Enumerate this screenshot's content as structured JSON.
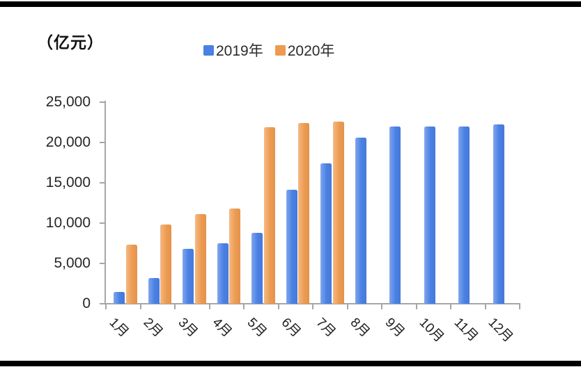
{
  "figure": {
    "unit_label": "（亿元）",
    "border_rule_color": "#000000",
    "axis_color": "#a6a6a6",
    "background": "#ffffff"
  },
  "chart_data": {
    "type": "bar",
    "title": "（亿元）",
    "ylabel": "（亿元）",
    "categories": [
      "1月",
      "2月",
      "3月",
      "4月",
      "5月",
      "6月",
      "7月",
      "8月",
      "9月",
      "10月",
      "11月",
      "12月"
    ],
    "series": [
      {
        "name": "2019年",
        "color": "#4A80E4",
        "values": [
          1500,
          3200,
          6800,
          7500,
          8800,
          14100,
          17400,
          20600,
          22000,
          22000,
          22000,
          22200
        ]
      },
      {
        "name": "2020年",
        "color": "#EE9B51",
        "values": [
          7300,
          9800,
          11100,
          11800,
          21900,
          22400,
          22600,
          null,
          null,
          null,
          null,
          null
        ]
      }
    ],
    "ylim": [
      0,
      25000
    ],
    "ytick_step": 5000,
    "ytick_labels": [
      "0",
      "5,000",
      "10,000",
      "15,000",
      "20,000",
      "25,000"
    ],
    "grid": false,
    "legend_position": "top-center"
  }
}
